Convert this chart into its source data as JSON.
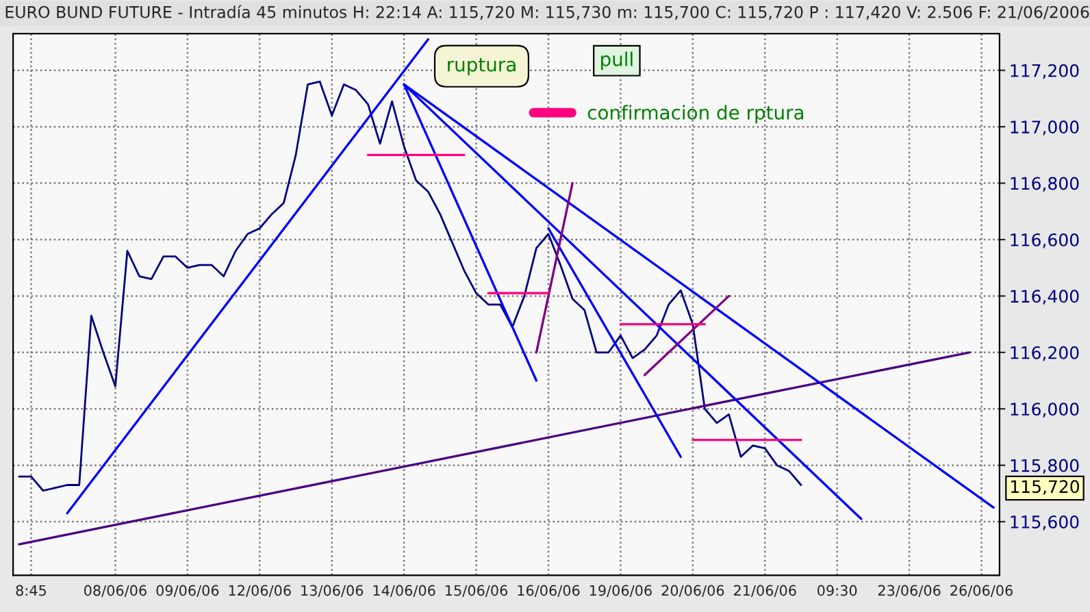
{
  "chart_data": {
    "type": "line",
    "title": "EURO BUND FUTURE - Intradía 45 minutos H: 22:14 A: 115,720 M: 115,730 m: 115,700 C: 115,720 P : 117,420 V: 2.506 F: 21/06/2006",
    "categories": [
      null,
      "8:45",
      null,
      null,
      null,
      null,
      null,
      null,
      "08/06/06",
      null,
      null,
      null,
      null,
      null,
      "09/06/06",
      null,
      null,
      null,
      null,
      null,
      "12/06/06",
      null,
      null,
      null,
      null,
      null,
      "13/06/06",
      null,
      null,
      null,
      null,
      null,
      "14/06/06",
      null,
      null,
      null,
      null,
      null,
      "15/06/06",
      null,
      null,
      null,
      null,
      null,
      "16/06/06",
      null,
      null,
      null,
      null,
      null,
      "19/06/06",
      null,
      null,
      null,
      null,
      null,
      "20/06/06",
      null,
      null,
      null,
      null,
      null,
      "21/06/06",
      null,
      null,
      null,
      null,
      null,
      "09:30",
      null,
      null,
      null,
      null,
      null,
      "23/06/06",
      null,
      null,
      null,
      null,
      null,
      "26/06/06",
      null
    ],
    "ylim": [
      115410,
      117330
    ],
    "yticks": [
      {
        "value": 115600,
        "label": "115,600"
      },
      {
        "value": 115800,
        "label": "115,800"
      },
      {
        "value": 116000,
        "label": "116,000"
      },
      {
        "value": 116200,
        "label": "116,200"
      },
      {
        "value": 116400,
        "label": "116,400"
      },
      {
        "value": 116600,
        "label": "116,600"
      },
      {
        "value": 116800,
        "label": "116,800"
      },
      {
        "value": 117000,
        "label": "117,000"
      },
      {
        "value": 117200,
        "label": "117,200"
      }
    ],
    "grid": true,
    "legend": "top right",
    "series": [
      {
        "color": "#000080",
        "values": [
          115760,
          115760,
          115710,
          115720,
          115730,
          115730,
          116330,
          116200,
          116080,
          116560,
          116470,
          116460,
          116540,
          116540,
          116500,
          116510,
          116510,
          116470,
          116560,
          116620,
          116640,
          116690,
          116730,
          116900,
          117150,
          117160,
          117040,
          117150,
          117130,
          117080,
          116940,
          117090,
          116930,
          116810,
          116770,
          116690,
          116590,
          116490,
          116410,
          116370,
          116370,
          116290,
          116400,
          116570,
          116620,
          116510,
          116390,
          116350,
          116200,
          116200,
          116260,
          116180,
          116210,
          116260,
          116370,
          116420,
          116300,
          116000,
          115950,
          115980,
          115830,
          115870,
          115860,
          115800,
          115780,
          115730,
          null,
          null,
          null,
          null,
          null,
          null,
          null,
          null,
          null,
          null,
          null,
          null,
          null,
          null,
          null,
          null
        ]
      },
      {
        "color": "#0000ff",
        "values": [
          null,
          null,
          null,
          null,
          115630,
          null,
          null,
          null,
          null,
          null,
          null,
          null,
          null,
          null,
          null,
          null,
          null,
          null,
          null,
          null,
          null,
          null,
          null,
          null,
          null,
          null,
          null,
          null,
          null,
          null,
          null,
          null,
          null,
          null,
          117310,
          null,
          null,
          null,
          null,
          null,
          null,
          null,
          null,
          null,
          null,
          null,
          null,
          null,
          null,
          null,
          null,
          null,
          null,
          null,
          null,
          null,
          null,
          null,
          null,
          null,
          null,
          null,
          null,
          null,
          null,
          null,
          null,
          null,
          null,
          null,
          null,
          null,
          null,
          null,
          null,
          null,
          null,
          null,
          null,
          null,
          null,
          null
        ]
      },
      {
        "color": "#4b0082",
        "values": [
          115520,
          null,
          null,
          null,
          null,
          null,
          null,
          null,
          null,
          null,
          null,
          null,
          null,
          null,
          null,
          null,
          null,
          null,
          null,
          null,
          null,
          null,
          null,
          null,
          null,
          null,
          null,
          null,
          null,
          null,
          null,
          null,
          null,
          null,
          null,
          null,
          null,
          null,
          null,
          null,
          null,
          null,
          null,
          null,
          null,
          null,
          null,
          null,
          null,
          null,
          null,
          null,
          null,
          null,
          null,
          null,
          null,
          null,
          null,
          null,
          null,
          null,
          null,
          null,
          null,
          null,
          null,
          null,
          null,
          null,
          null,
          null,
          null,
          null,
          null,
          null,
          null,
          null,
          null,
          116200,
          null,
          null
        ]
      },
      {
        "color": "#0000ff",
        "values": [
          null,
          null,
          null,
          null,
          null,
          null,
          null,
          null,
          null,
          null,
          null,
          null,
          null,
          null,
          null,
          null,
          null,
          null,
          null,
          null,
          null,
          null,
          null,
          null,
          null,
          null,
          null,
          null,
          null,
          null,
          null,
          null,
          117150,
          null,
          null,
          null,
          null,
          null,
          null,
          null,
          null,
          null,
          null,
          116100,
          null,
          null,
          null,
          null,
          null,
          null,
          null,
          null,
          null,
          null,
          null,
          null,
          null,
          null,
          null,
          null,
          null,
          null,
          null,
          null,
          null,
          null,
          null,
          null,
          null,
          null,
          null,
          null,
          null,
          null,
          null,
          null,
          null,
          null,
          null,
          null,
          null,
          null
        ]
      },
      {
        "color": "#0000ff",
        "values": [
          null,
          null,
          null,
          null,
          null,
          null,
          null,
          null,
          null,
          null,
          null,
          null,
          null,
          null,
          null,
          null,
          null,
          null,
          null,
          null,
          null,
          null,
          null,
          null,
          null,
          null,
          null,
          null,
          null,
          null,
          null,
          null,
          117150,
          null,
          null,
          null,
          null,
          null,
          null,
          null,
          null,
          null,
          null,
          null,
          null,
          null,
          null,
          null,
          null,
          null,
          null,
          null,
          null,
          null,
          null,
          null,
          null,
          null,
          null,
          null,
          null,
          null,
          null,
          null,
          null,
          null,
          null,
          null,
          null,
          null,
          115610,
          null,
          null,
          null,
          null,
          null,
          null,
          null,
          null,
          null,
          null,
          null
        ]
      },
      {
        "color": "#0000ff",
        "values": [
          null,
          null,
          null,
          null,
          null,
          null,
          null,
          null,
          null,
          null,
          null,
          null,
          null,
          null,
          null,
          null,
          null,
          null,
          null,
          null,
          null,
          null,
          null,
          null,
          null,
          null,
          null,
          null,
          null,
          null,
          null,
          null,
          117150,
          null,
          null,
          null,
          null,
          null,
          null,
          null,
          null,
          null,
          null,
          null,
          null,
          null,
          null,
          null,
          null,
          null,
          null,
          null,
          null,
          null,
          null,
          null,
          null,
          null,
          null,
          null,
          null,
          null,
          null,
          null,
          null,
          null,
          null,
          null,
          null,
          null,
          null,
          null,
          null,
          null,
          null,
          null,
          null,
          null,
          null,
          null,
          null,
          115650
        ]
      },
      {
        "color": "#0000ff",
        "values": [
          null,
          null,
          null,
          null,
          null,
          null,
          null,
          null,
          null,
          null,
          null,
          null,
          null,
          null,
          null,
          null,
          null,
          null,
          null,
          null,
          null,
          null,
          null,
          null,
          null,
          null,
          null,
          null,
          null,
          null,
          null,
          null,
          null,
          null,
          null,
          null,
          null,
          null,
          null,
          null,
          null,
          null,
          null,
          null,
          116640,
          null,
          null,
          null,
          null,
          null,
          null,
          null,
          null,
          null,
          null,
          115830,
          null,
          null,
          null,
          null,
          null,
          null,
          null,
          null,
          null,
          null,
          null,
          null,
          null,
          null,
          null,
          null,
          null,
          null,
          null,
          null,
          null,
          null,
          null,
          null,
          null,
          null
        ]
      },
      {
        "color": "#800080",
        "values": [
          null,
          null,
          null,
          null,
          null,
          null,
          null,
          null,
          null,
          null,
          null,
          null,
          null,
          null,
          null,
          null,
          null,
          null,
          null,
          null,
          null,
          null,
          null,
          null,
          null,
          null,
          null,
          null,
          null,
          null,
          null,
          null,
          null,
          null,
          null,
          null,
          null,
          null,
          null,
          null,
          null,
          null,
          null,
          116200,
          null,
          null,
          116800,
          null,
          null,
          null,
          null,
          null,
          null,
          null,
          null,
          null,
          null,
          null,
          null,
          null,
          null,
          null,
          null,
          null,
          null,
          null,
          null,
          null,
          null,
          null,
          null,
          null,
          null,
          null,
          null,
          null,
          null,
          null,
          null,
          null,
          null,
          null
        ]
      },
      {
        "color": "#800080",
        "values": [
          null,
          null,
          null,
          null,
          null,
          null,
          null,
          null,
          null,
          null,
          null,
          null,
          null,
          null,
          null,
          null,
          null,
          null,
          null,
          null,
          null,
          null,
          null,
          null,
          null,
          null,
          null,
          null,
          null,
          null,
          null,
          null,
          null,
          null,
          null,
          null,
          null,
          null,
          null,
          null,
          null,
          null,
          null,
          null,
          null,
          null,
          null,
          null,
          null,
          null,
          null,
          null,
          116120,
          null,
          null,
          null,
          null,
          null,
          null,
          116400,
          null,
          null,
          null,
          null,
          null,
          null,
          null,
          null,
          null,
          null,
          null,
          null,
          null,
          null,
          null,
          null,
          null,
          null,
          null,
          null,
          null,
          null
        ]
      },
      {
        "name": "confirmacion de rptura",
        "color": "#ff0080",
        "values": [
          null,
          null,
          null,
          null,
          null,
          null,
          null,
          null,
          null,
          null,
          null,
          null,
          null,
          null,
          null,
          null,
          null,
          null,
          null,
          null,
          null,
          null,
          null,
          null,
          null,
          null,
          null,
          null,
          null,
          116900,
          null,
          null,
          null,
          null,
          null,
          null,
          null,
          116900,
          null,
          null,
          null,
          null,
          null,
          null,
          null,
          null,
          null,
          null,
          null,
          null,
          null,
          null,
          null,
          null,
          null,
          null,
          null,
          null,
          null,
          null,
          null,
          null,
          null,
          null,
          null,
          null,
          null,
          null,
          null,
          null,
          null,
          null,
          null,
          null,
          null,
          null,
          null,
          null,
          null,
          null,
          null,
          null
        ]
      },
      {
        "color": "#ff0080",
        "values": [
          null,
          null,
          null,
          null,
          null,
          null,
          null,
          null,
          null,
          null,
          null,
          null,
          null,
          null,
          null,
          null,
          null,
          null,
          null,
          null,
          null,
          null,
          null,
          null,
          null,
          null,
          null,
          null,
          null,
          null,
          null,
          null,
          null,
          null,
          null,
          null,
          null,
          null,
          null,
          116410,
          null,
          null,
          null,
          null,
          116410,
          null,
          null,
          null,
          null,
          null,
          null,
          null,
          null,
          null,
          null,
          null,
          null,
          null,
          null,
          null,
          null,
          null,
          null,
          null,
          null,
          null,
          null,
          null,
          null,
          null,
          null,
          null,
          null,
          null,
          null,
          null,
          null,
          null,
          null,
          null,
          null,
          null
        ]
      },
      {
        "color": "#ff0080",
        "values": [
          null,
          null,
          null,
          null,
          null,
          null,
          null,
          null,
          null,
          null,
          null,
          null,
          null,
          null,
          null,
          null,
          null,
          null,
          null,
          null,
          null,
          null,
          null,
          null,
          null,
          null,
          null,
          null,
          null,
          null,
          null,
          null,
          null,
          null,
          null,
          null,
          null,
          null,
          null,
          null,
          null,
          null,
          null,
          null,
          null,
          null,
          null,
          null,
          null,
          null,
          116300,
          null,
          null,
          null,
          null,
          null,
          null,
          116300,
          null,
          null,
          null,
          null,
          null,
          null,
          null,
          null,
          null,
          null,
          null,
          null,
          null,
          null,
          null,
          null,
          null,
          null,
          null,
          null,
          null,
          null,
          null,
          null
        ]
      },
      {
        "color": "#ff0080",
        "values": [
          null,
          null,
          null,
          null,
          null,
          null,
          null,
          null,
          null,
          null,
          null,
          null,
          null,
          null,
          null,
          null,
          null,
          null,
          null,
          null,
          null,
          null,
          null,
          null,
          null,
          null,
          null,
          null,
          null,
          null,
          null,
          null,
          null,
          null,
          null,
          null,
          null,
          null,
          null,
          null,
          null,
          null,
          null,
          null,
          null,
          null,
          null,
          null,
          null,
          null,
          null,
          null,
          null,
          null,
          null,
          null,
          115890,
          null,
          null,
          null,
          null,
          null,
          null,
          null,
          null,
          115890,
          null,
          null,
          null,
          null,
          null,
          null,
          null,
          null,
          null,
          null,
          null,
          null,
          null,
          null,
          null,
          null
        ]
      }
    ],
    "annotations": [
      "ruptura",
      "pull",
      "115,720"
    ]
  }
}
